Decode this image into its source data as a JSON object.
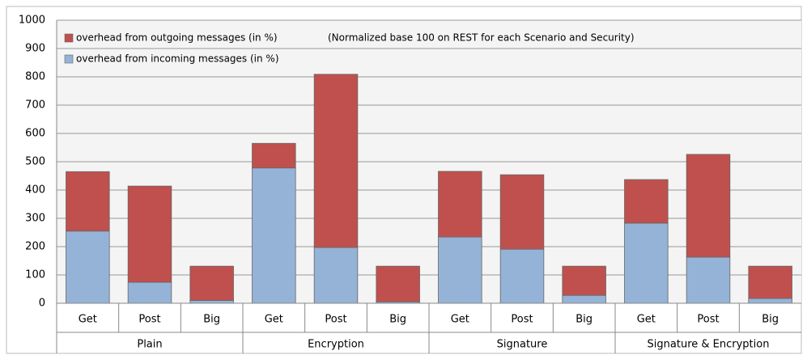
{
  "chart_data": {
    "type": "stacked_bar",
    "annotation": "(Normalized base 100 on REST for each Scenario and Security)",
    "categories": [
      "Get",
      "Post",
      "Big",
      "Get",
      "Post",
      "Big",
      "Get",
      "Post",
      "Big",
      "Get",
      "Post",
      "Big"
    ],
    "groups": [
      "Plain",
      "Encryption",
      "Signature",
      "Signature & Encryption"
    ],
    "series": [
      {
        "name": "overhead from incoming messages (in %)",
        "color": "#95b3d7",
        "values": [
          255,
          74,
          10,
          478,
          197,
          5,
          234,
          191,
          28,
          283,
          163,
          17
        ]
      },
      {
        "name": "overhead from outgoing messages (in %)",
        "color": "#c0504d",
        "values": [
          210,
          340,
          121,
          87,
          612,
          126,
          232,
          263,
          103,
          154,
          363,
          114
        ]
      }
    ],
    "ylim": [
      0,
      1000
    ],
    "yticks": [
      0,
      100,
      200,
      300,
      400,
      500,
      600,
      700,
      800,
      900,
      1000
    ],
    "grid": true
  }
}
